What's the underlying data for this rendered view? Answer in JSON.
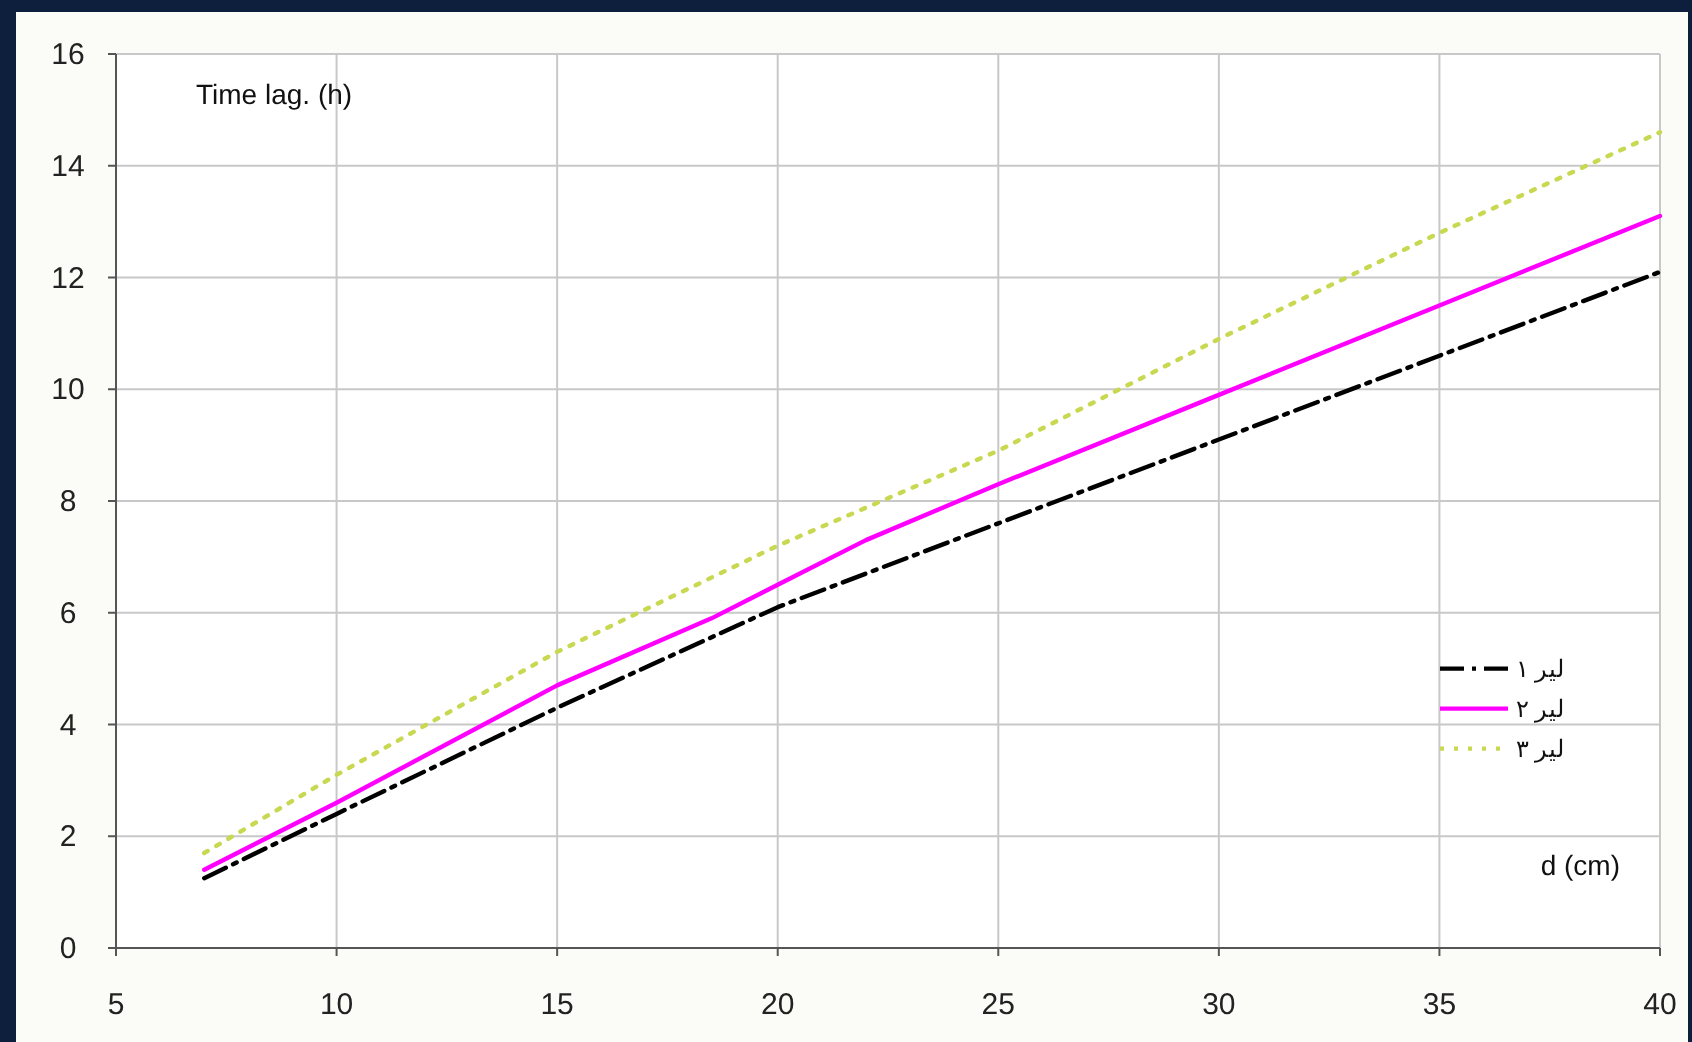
{
  "chart_data": {
    "type": "line",
    "xlabel": "d (cm)",
    "ylabel": "Time lag. (h)",
    "xlim": [
      5,
      40
    ],
    "xticks": [
      5,
      10,
      15,
      20,
      25,
      30,
      35,
      40
    ],
    "ylim": [
      0,
      16
    ],
    "yticks": [
      0,
      2,
      4,
      6,
      8,
      10,
      12,
      14,
      16
    ],
    "grid": true,
    "legend": "bottom right",
    "marker": "none",
    "series": [
      {
        "name": "لیر ۱",
        "color": "#000000",
        "line_style": "dashed",
        "x": [
          7,
          10,
          15,
          20,
          25,
          30,
          35,
          40
        ],
        "values": [
          1.25,
          2.4,
          4.3,
          6.1,
          7.6,
          9.1,
          10.6,
          12.1
        ]
      },
      {
        "name": "لیر ۲",
        "color": "#ff00ff",
        "line_style": "solid",
        "x": [
          7,
          10,
          15,
          18.5,
          20,
          22,
          25,
          30,
          35,
          40
        ],
        "values": [
          1.4,
          2.6,
          4.7,
          5.9,
          6.5,
          7.3,
          8.3,
          9.9,
          11.5,
          13.1
        ]
      },
      {
        "name": "لیر ۳",
        "color": "#c8d850",
        "line_style": "dotted",
        "x": [
          7,
          10,
          15,
          20,
          25,
          30,
          35,
          40
        ],
        "values": [
          1.7,
          3.1,
          5.3,
          7.2,
          8.9,
          10.9,
          12.8,
          14.6
        ]
      }
    ]
  }
}
